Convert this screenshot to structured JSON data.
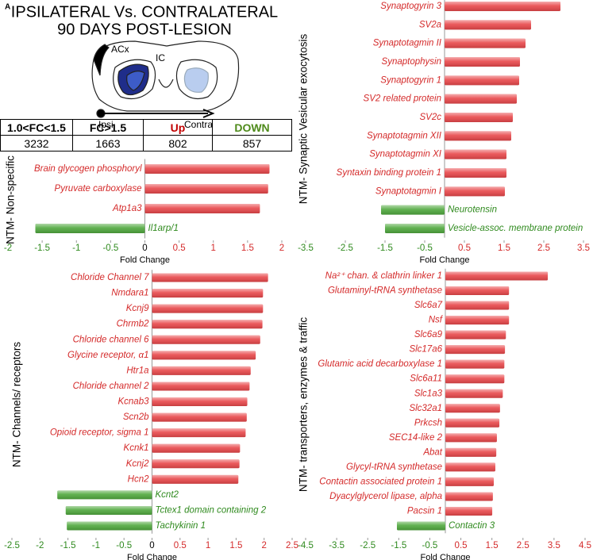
{
  "panel_label": "A",
  "title": [
    "IPSILATERAL Vs. CONTRALATERAL",
    "90 DAYS POST-LESION"
  ],
  "diagram": {
    "acx": "ACx",
    "ic": "IC",
    "ipsi": "Ipsi",
    "contra": "Contra"
  },
  "table": {
    "header": [
      "1.0<FC<1.5",
      "FC>1.5",
      "Up",
      "DOWN"
    ],
    "row": [
      3232,
      1663,
      802,
      857
    ]
  },
  "chart_data": [
    {
      "type": "bar",
      "horizontal": true,
      "ylabel": "NTM- Non-specific",
      "xlabel": "Fold Change",
      "categories": [
        "Brain glycogen phosphoryl",
        "Pyruvate carboxylase",
        "Atp1a3",
        "Il1arp/1"
      ],
      "values": [
        1.82,
        1.8,
        1.68,
        -1.6
      ],
      "xlim": [
        -2,
        2
      ],
      "xticks": [
        -2,
        -1.5,
        -1,
        -0.5,
        0,
        0.5,
        1,
        1.5,
        2
      ],
      "positive_color": "#e8474a",
      "negative_color": "#4fa83d"
    },
    {
      "type": "bar",
      "horizontal": true,
      "ylabel": "NTM- Synaptic Vesicular exocytosis",
      "xlabel": "Fold Change",
      "categories": [
        "Synaptogyrin 3",
        "SV2a",
        "Synaptotagmin II",
        "Synaptophysin",
        "Synaptogyrin 1",
        "SV2 related protein",
        "SV2c",
        "Synaptotagmin XII",
        "Synaptotagmin XI",
        "Syntaxin binding protein 1",
        "Synaptotagmin I",
        "Neurotensin",
        "Vesicle-assoc. membrane protein"
      ],
      "values": [
        2.92,
        2.18,
        2.04,
        1.9,
        1.88,
        1.82,
        1.72,
        1.68,
        1.56,
        1.56,
        1.52,
        -1.6,
        -1.5
      ],
      "xlim": [
        -3.5,
        3.5
      ],
      "xticks": [
        -3.5,
        -2.5,
        -1.5,
        -0.5,
        0.5,
        1.5,
        2.5,
        3.5
      ],
      "positive_color": "#e8474a",
      "negative_color": "#4fa83d"
    },
    {
      "type": "bar",
      "horizontal": true,
      "ylabel": "NTM- Channels/ receptors",
      "xlabel": "Fold Change",
      "categories": [
        "Chloride Channel 7",
        "Nmdara1",
        "Kcnj9",
        "Chrmb2",
        "Chloride channel 6",
        "Glycine receptor, α1",
        "Htr1a",
        "Chloride channel 2",
        "Kcnab3",
        "Scn2b",
        "Opioid receptor, sigma 1",
        "Kcnk1",
        "Kcnj2",
        "Hcn2",
        "Kcnt2",
        "Tctex1 domain containing 2",
        "Tachykinin 1"
      ],
      "values": [
        2.07,
        1.98,
        1.98,
        1.97,
        1.93,
        1.85,
        1.76,
        1.74,
        1.7,
        1.69,
        1.67,
        1.57,
        1.56,
        1.54,
        -1.69,
        -1.54,
        -1.52
      ],
      "xlim": [
        -2.5,
        2.5
      ],
      "xticks": [
        -2.5,
        -2,
        -1.5,
        -1,
        -0.5,
        0,
        0.5,
        1,
        1.5,
        2,
        2.5
      ],
      "positive_color": "#e8474a",
      "negative_color": "#4fa83d"
    },
    {
      "type": "bar",
      "horizontal": true,
      "ylabel": "NTM- transporters, enzymes & traffic",
      "xlabel": "Fold Change",
      "categories": [
        "Na²⁺ chan. & clathrin linker 1",
        "Glutaminyl-tRNA synthetase",
        "Slc6a7",
        "Nsf",
        "Slc6a9",
        "Slc17a6",
        "Glutamic acid decarboxylase 1",
        "Slc6a11",
        "Slc1a3",
        "Slc32a1",
        "Prkcsh",
        "SEC14-like 2",
        "Abat",
        "Glycyl-tRNA synthetase",
        "Contactin associated protein 1",
        "Dyacylglycerol lipase, alpha",
        "Pacsin 1",
        "Contactin 3"
      ],
      "values": [
        3.3,
        2.05,
        2.05,
        2.05,
        1.95,
        1.92,
        1.9,
        1.9,
        1.85,
        1.76,
        1.74,
        1.66,
        1.64,
        1.61,
        1.56,
        1.53,
        1.51,
        -1.56
      ],
      "xlim": [
        -4.5,
        4.5
      ],
      "xticks": [
        -4.5,
        -3.5,
        -2.5,
        -1.5,
        -0.5,
        0.5,
        1.5,
        2.5,
        3.5,
        4.5
      ],
      "positive_color": "#e8474a",
      "negative_color": "#4fa83d"
    }
  ]
}
